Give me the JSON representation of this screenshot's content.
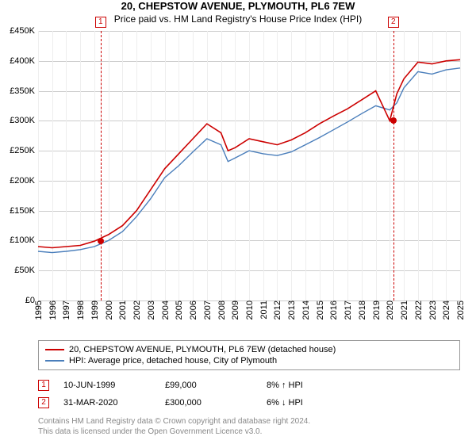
{
  "title": "20, CHEPSTOW AVENUE, PLYMOUTH, PL6 7EW",
  "subtitle": "Price paid vs. HM Land Registry's House Price Index (HPI)",
  "chart": {
    "type": "line",
    "background_color": "#ffffff",
    "grid_color_h": "#cccccc",
    "grid_color_v": "#eeeeee",
    "axis_fontsize": 11,
    "ylim": [
      0,
      450000
    ],
    "ytick_step": 50000,
    "yticks": [
      "£0",
      "£50K",
      "£100K",
      "£150K",
      "£200K",
      "£250K",
      "£300K",
      "£350K",
      "£400K",
      "£450K"
    ],
    "xlim": [
      1995,
      2025
    ],
    "xticks": [
      1995,
      1996,
      1997,
      1998,
      1999,
      2000,
      2001,
      2002,
      2003,
      2004,
      2005,
      2006,
      2007,
      2008,
      2009,
      2010,
      2011,
      2012,
      2013,
      2014,
      2015,
      2016,
      2017,
      2018,
      2019,
      2020,
      2021,
      2022,
      2023,
      2024,
      2025
    ],
    "series": [
      {
        "name": "property",
        "label": "20, CHEPSTOW AVENUE, PLYMOUTH, PL6 7EW (detached house)",
        "color": "#cc0000",
        "line_width": 1.6,
        "points": [
          [
            1995,
            90000
          ],
          [
            1996,
            88000
          ],
          [
            1997,
            90000
          ],
          [
            1998,
            92000
          ],
          [
            1999,
            99000
          ],
          [
            2000,
            110000
          ],
          [
            2001,
            125000
          ],
          [
            2002,
            150000
          ],
          [
            2003,
            185000
          ],
          [
            2004,
            220000
          ],
          [
            2005,
            245000
          ],
          [
            2006,
            270000
          ],
          [
            2007,
            295000
          ],
          [
            2008,
            280000
          ],
          [
            2008.5,
            250000
          ],
          [
            2009,
            255000
          ],
          [
            2010,
            270000
          ],
          [
            2011,
            265000
          ],
          [
            2012,
            260000
          ],
          [
            2013,
            268000
          ],
          [
            2014,
            280000
          ],
          [
            2015,
            295000
          ],
          [
            2016,
            308000
          ],
          [
            2017,
            320000
          ],
          [
            2018,
            335000
          ],
          [
            2019,
            350000
          ],
          [
            2020,
            300000
          ],
          [
            2020.5,
            345000
          ],
          [
            2021,
            370000
          ],
          [
            2022,
            398000
          ],
          [
            2023,
            395000
          ],
          [
            2024,
            400000
          ],
          [
            2025,
            402000
          ]
        ]
      },
      {
        "name": "hpi",
        "label": "HPI: Average price, detached house, City of Plymouth",
        "color": "#4a7ebb",
        "line_width": 1.4,
        "points": [
          [
            1995,
            82000
          ],
          [
            1996,
            80000
          ],
          [
            1997,
            82000
          ],
          [
            1998,
            85000
          ],
          [
            1999,
            90000
          ],
          [
            2000,
            100000
          ],
          [
            2001,
            115000
          ],
          [
            2002,
            140000
          ],
          [
            2003,
            170000
          ],
          [
            2004,
            205000
          ],
          [
            2005,
            225000
          ],
          [
            2006,
            248000
          ],
          [
            2007,
            270000
          ],
          [
            2008,
            260000
          ],
          [
            2008.5,
            232000
          ],
          [
            2009,
            238000
          ],
          [
            2010,
            250000
          ],
          [
            2011,
            245000
          ],
          [
            2012,
            242000
          ],
          [
            2013,
            248000
          ],
          [
            2014,
            260000
          ],
          [
            2015,
            272000
          ],
          [
            2016,
            285000
          ],
          [
            2017,
            298000
          ],
          [
            2018,
            312000
          ],
          [
            2019,
            325000
          ],
          [
            2020,
            318000
          ],
          [
            2020.5,
            330000
          ],
          [
            2021,
            355000
          ],
          [
            2022,
            382000
          ],
          [
            2023,
            378000
          ],
          [
            2024,
            385000
          ],
          [
            2025,
            388000
          ]
        ]
      }
    ],
    "markers": [
      {
        "n": "1",
        "x": 1999.44,
        "y": 99000
      },
      {
        "n": "2",
        "x": 2020.25,
        "y": 300000
      }
    ]
  },
  "legend": {
    "items": [
      {
        "color": "#cc0000",
        "label": "20, CHEPSTOW AVENUE, PLYMOUTH, PL6 7EW (detached house)"
      },
      {
        "color": "#4a7ebb",
        "label": "HPI: Average price, detached house, City of Plymouth"
      }
    ]
  },
  "sales": [
    {
      "n": "1",
      "date": "10-JUN-1999",
      "price": "£99,000",
      "diff": "8% ↑ HPI"
    },
    {
      "n": "2",
      "date": "31-MAR-2020",
      "price": "£300,000",
      "diff": "6% ↓ HPI"
    }
  ],
  "attribution": {
    "line1": "Contains HM Land Registry data © Crown copyright and database right 2024.",
    "line2": "This data is licensed under the Open Government Licence v3.0."
  }
}
